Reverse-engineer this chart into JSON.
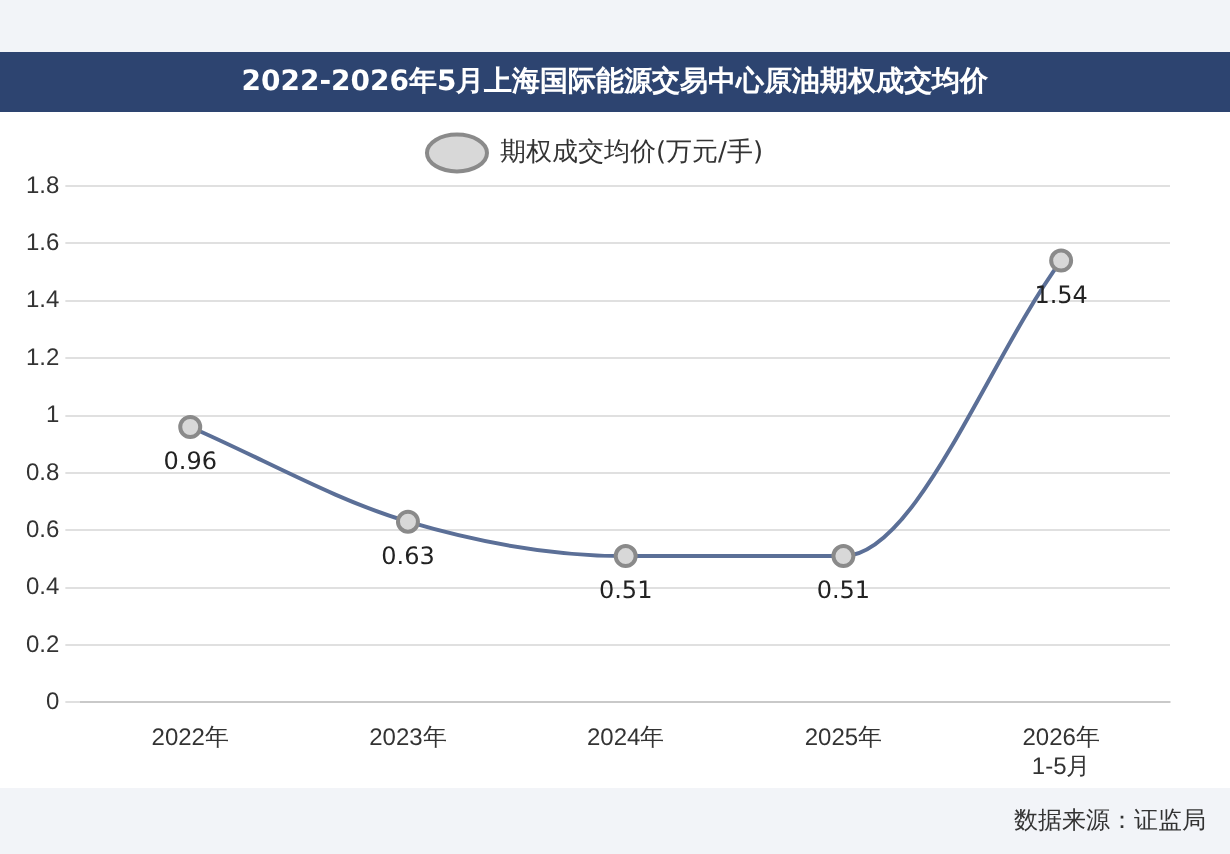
{
  "chart_data": {
    "type": "line",
    "title": "2022-2026年5月上海国际能源交易中心原油期权成交均价",
    "categories": [
      "2022年",
      "2023年",
      "2024年",
      "2025年",
      "2026年\n1-5月"
    ],
    "series": [
      {
        "name": "期权成交均价(万元/手)",
        "color": "#5b6f97",
        "values": [
          0.96,
          0.63,
          0.51,
          0.51,
          1.54
        ]
      }
    ],
    "ylim": [
      0,
      1.8
    ],
    "yticks": [
      0,
      {
        "value": 0.2,
        "label": "0.2"
      },
      {
        "value": 0.4,
        "label": "0.4"
      },
      {
        "value": 0.6,
        "label": "0.6"
      },
      {
        "value": 0.8,
        "label": "0.8"
      },
      1,
      {
        "value": 1.2,
        "label": "1.2"
      },
      {
        "value": 1.4,
        "label": "1.4"
      },
      {
        "value": 1.6,
        "label": "1.6"
      },
      {
        "value": 1.8,
        "label": "1.8"
      }
    ],
    "grid": "y",
    "legend": "top",
    "marker": "circle",
    "data_labels": true,
    "annotations": [
      "数据来源：证监局"
    ]
  }
}
